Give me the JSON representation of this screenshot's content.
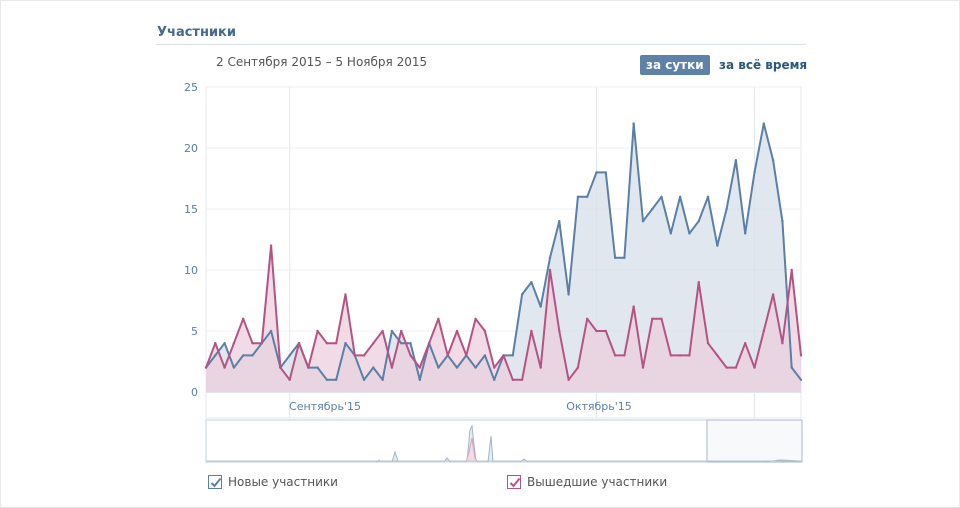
{
  "header": {
    "title": "Участники",
    "date_range": "2 Сентября 2015 – 5 Ноября 2015",
    "period_day": "за сутки",
    "period_all": "за всё время"
  },
  "colors": {
    "series_new": "#5b7fa6",
    "series_left": "#b55384",
    "fill_new": "#d7dfe8",
    "fill_left": "#ebcfdd",
    "accent_button": "#5e81a8"
  },
  "chart_data": {
    "type": "area",
    "title": "",
    "ylim": [
      0,
      25
    ],
    "yticks": [
      "0",
      "5",
      "10",
      "15",
      "20",
      "25"
    ],
    "month_labels": [
      {
        "label": "Сентябрь'15",
        "index": 9
      },
      {
        "label": "Октябрь'15",
        "index": 42
      }
    ],
    "grid": true,
    "series": [
      {
        "name": "Новые участники",
        "values": [
          2,
          3,
          4,
          2,
          3,
          3,
          4,
          5,
          2,
          3,
          4,
          2,
          2,
          1,
          1,
          4,
          3,
          1,
          2,
          1,
          5,
          4,
          4,
          1,
          4,
          2,
          3,
          2,
          3,
          2,
          3,
          1,
          3,
          3,
          8,
          9,
          7,
          11,
          14,
          8,
          16,
          16,
          18,
          18,
          11,
          11,
          22,
          14,
          15,
          16,
          13,
          16,
          13,
          14,
          16,
          12,
          15,
          19,
          13,
          18,
          22,
          19,
          14,
          2,
          1
        ]
      },
      {
        "name": "Вышедшие участники",
        "values": [
          2,
          4,
          2,
          4,
          6,
          4,
          4,
          12,
          2,
          1,
          4,
          2,
          5,
          4,
          4,
          8,
          3,
          3,
          4,
          5,
          2,
          5,
          3,
          2,
          4,
          6,
          3,
          5,
          3,
          6,
          5,
          2,
          3,
          1,
          1,
          5,
          2,
          10,
          5,
          1,
          2,
          6,
          5,
          5,
          3,
          3,
          7,
          2,
          6,
          6,
          3,
          3,
          3,
          9,
          4,
          3,
          2,
          2,
          4,
          2,
          5,
          8,
          4,
          10,
          3
        ]
      }
    ]
  },
  "legend": {
    "new_label": "Новые участники",
    "left_label": "Вышедшие участники"
  }
}
